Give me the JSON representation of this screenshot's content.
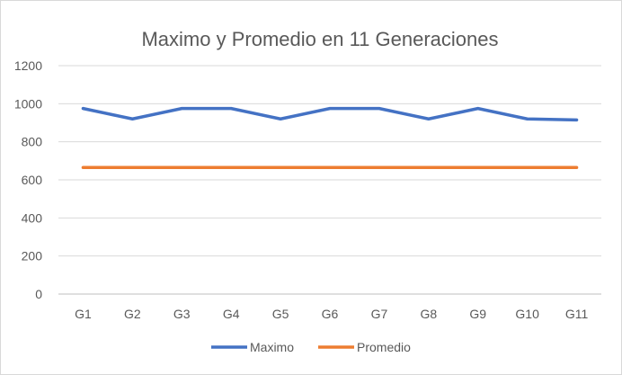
{
  "chart_data": {
    "type": "line",
    "title": "Maximo y Promedio en 11 Generaciones",
    "xlabel": "",
    "ylabel": "",
    "categories": [
      "G1",
      "G2",
      "G3",
      "G4",
      "G5",
      "G6",
      "G7",
      "G8",
      "G9",
      "G10",
      "G11"
    ],
    "ylim": [
      0,
      1200
    ],
    "yticks": [
      0,
      200,
      400,
      600,
      800,
      1000,
      1200
    ],
    "grid": true,
    "legend": "bottom",
    "series": [
      {
        "name": "Maximo",
        "color": "#4472c4",
        "values": [
          975,
          920,
          975,
          975,
          920,
          975,
          975,
          920,
          975,
          920,
          915
        ]
      },
      {
        "name": "Promedio",
        "color": "#ed7d31",
        "values": [
          665,
          665,
          665,
          665,
          665,
          665,
          665,
          665,
          665,
          665,
          665
        ]
      }
    ]
  }
}
